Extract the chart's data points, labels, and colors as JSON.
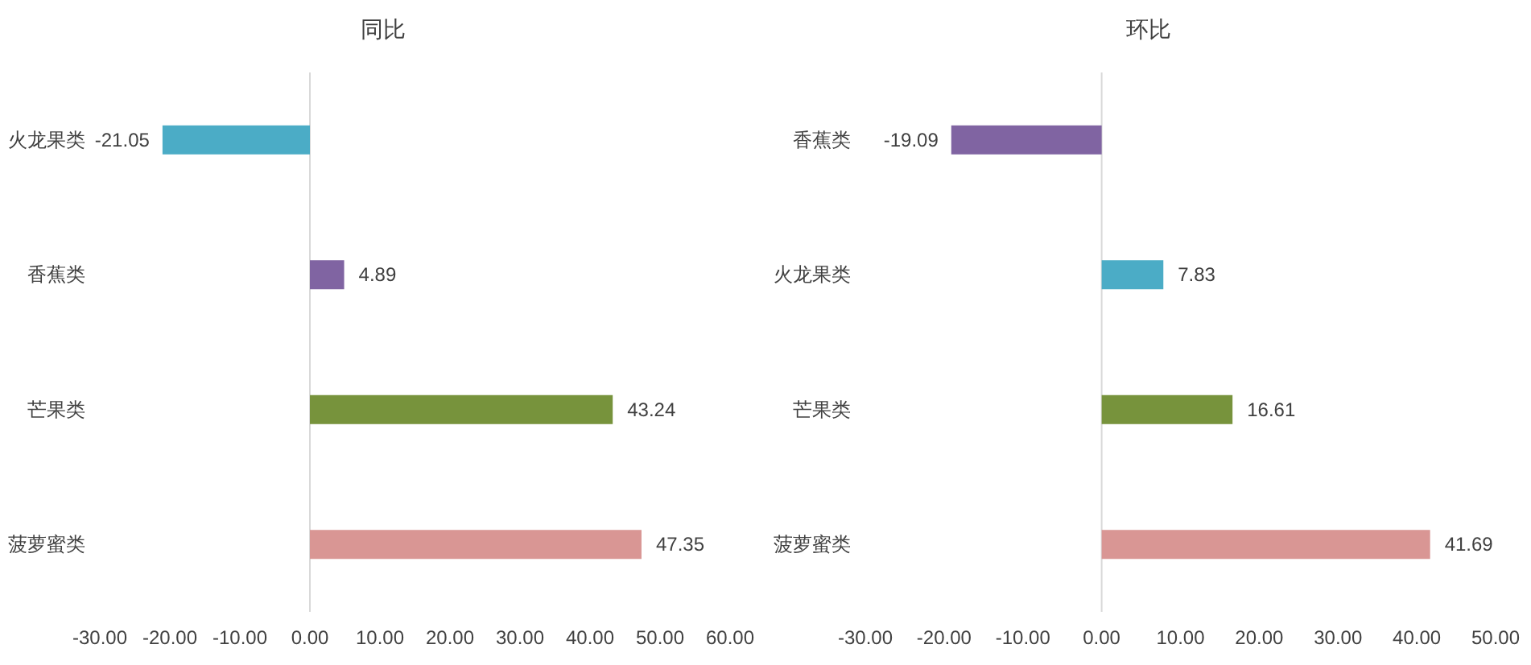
{
  "chart_data": [
    {
      "type": "bar",
      "orientation": "horizontal",
      "title": "同比",
      "categories": [
        "火龙果类",
        "香蕉类",
        "芒果类",
        "菠萝蜜类"
      ],
      "values": [
        -21.05,
        4.89,
        43.24,
        47.35
      ],
      "colors": [
        "#4bacc6",
        "#8064a2",
        "#77933c",
        "#d99694"
      ],
      "xlim": [
        -30,
        60
      ],
      "xticks": [
        {
          "value": -30,
          "label": "-30.00"
        },
        {
          "value": -20,
          "label": "-20.00"
        },
        {
          "value": -10,
          "label": "-10.00"
        },
        {
          "value": 0,
          "label": "0.00"
        },
        {
          "value": 10,
          "label": "10.00"
        },
        {
          "value": 20,
          "label": "20.00"
        },
        {
          "value": 30,
          "label": "30.00"
        },
        {
          "value": 40,
          "label": "40.00"
        },
        {
          "value": 50,
          "label": "50.00"
        },
        {
          "value": 60,
          "label": "60.00"
        }
      ],
      "data_labels": true
    },
    {
      "type": "bar",
      "orientation": "horizontal",
      "title": "环比",
      "categories": [
        "香蕉类",
        "火龙果类",
        "芒果类",
        "菠萝蜜类"
      ],
      "values": [
        -19.09,
        7.83,
        16.61,
        41.69
      ],
      "colors": [
        "#8064a2",
        "#4bacc6",
        "#77933c",
        "#d99694"
      ],
      "xlim": [
        -30,
        50
      ],
      "xticks": [
        {
          "value": -30,
          "label": "-30.00"
        },
        {
          "value": -20,
          "label": "-20.00"
        },
        {
          "value": -10,
          "label": "-10.00"
        },
        {
          "value": 0,
          "label": "0.00"
        },
        {
          "value": 10,
          "label": "10.00"
        },
        {
          "value": 20,
          "label": "20.00"
        },
        {
          "value": 30,
          "label": "30.00"
        },
        {
          "value": 40,
          "label": "40.00"
        },
        {
          "value": 50,
          "label": "50.00"
        }
      ],
      "data_labels": true
    }
  ]
}
